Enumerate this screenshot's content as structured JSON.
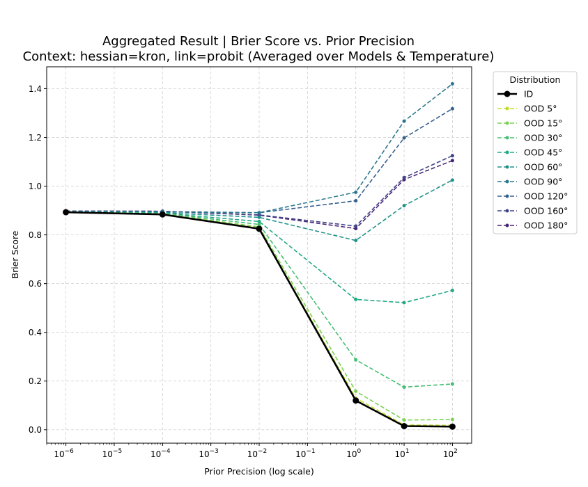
{
  "chart_data": {
    "type": "line",
    "title": "Aggregated Result | Brier Score vs. Prior Precision",
    "subtitle": "Context: hessian=kron, link=probit (Averaged over Models & Temperature)",
    "xlabel": "Prior Precision (log scale)",
    "ylabel": "Brier Score",
    "x_scale": "log",
    "x": [
      1e-06,
      0.0001,
      0.01,
      1,
      10,
      100
    ],
    "xlim": [
      4e-07,
      250
    ],
    "ylim": [
      -0.055,
      1.49
    ],
    "x_ticks": [
      {
        "exp": 6,
        "value": 1e-06
      },
      {
        "exp": 5,
        "value": 1e-05
      },
      {
        "exp": 4,
        "value": 0.0001
      },
      {
        "exp": 3,
        "value": 0.001
      },
      {
        "exp": 2,
        "value": 0.01
      },
      {
        "exp": 1,
        "value": 0.1
      },
      {
        "exp": 0,
        "value": 1
      },
      {
        "exp": 1,
        "value": 10
      },
      {
        "exp": 2,
        "value": 100
      }
    ],
    "x_tick_labels": [
      "10",
      "10",
      "10",
      "10",
      "10",
      "10",
      "10",
      "10",
      "10"
    ],
    "x_tick_exponents": [
      "−6",
      "−5",
      "−4",
      "−3",
      "−2",
      "−1",
      "0",
      "1",
      "2"
    ],
    "y_ticks": [
      0.0,
      0.2,
      0.4,
      0.6,
      0.8,
      1.0,
      1.2,
      1.4
    ],
    "y_tick_labels": [
      "0.0",
      "0.2",
      "0.4",
      "0.6",
      "0.8",
      "1.0",
      "1.2",
      "1.4"
    ],
    "grid": true,
    "legend": {
      "title": "Distribution",
      "placement": "outside-right-top"
    },
    "series": [
      {
        "name": "ID",
        "color": "#000000",
        "style": "solid",
        "values": [
          0.893,
          0.884,
          0.825,
          0.12,
          0.015,
          0.013
        ]
      },
      {
        "name": "OOD 5°",
        "color": "#bddf26",
        "style": "dashed",
        "values": [
          0.893,
          0.885,
          0.828,
          0.13,
          0.02,
          0.018
        ]
      },
      {
        "name": "OOD 15°",
        "color": "#7ad151",
        "style": "dashed",
        "values": [
          0.893,
          0.886,
          0.833,
          0.158,
          0.04,
          0.042
        ]
      },
      {
        "name": "OOD 30°",
        "color": "#44bf70",
        "style": "dashed",
        "values": [
          0.894,
          0.888,
          0.843,
          0.287,
          0.175,
          0.188
        ]
      },
      {
        "name": "OOD 45°",
        "color": "#22a884",
        "style": "dashed",
        "values": [
          0.894,
          0.889,
          0.855,
          0.535,
          0.522,
          0.572
        ]
      },
      {
        "name": "OOD 60°",
        "color": "#21918c",
        "style": "dashed",
        "values": [
          0.895,
          0.891,
          0.872,
          0.777,
          0.92,
          1.025
        ]
      },
      {
        "name": "OOD 90°",
        "color": "#2a788e",
        "style": "dashed",
        "values": [
          0.896,
          0.894,
          0.891,
          0.975,
          1.267,
          1.42
        ]
      },
      {
        "name": "OOD 120°",
        "color": "#355f8d",
        "style": "dashed",
        "values": [
          0.897,
          0.896,
          0.891,
          0.94,
          1.198,
          1.318
        ]
      },
      {
        "name": "OOD 160°",
        "color": "#414487",
        "style": "dashed",
        "values": [
          0.898,
          0.897,
          0.882,
          0.836,
          1.035,
          1.125
        ]
      },
      {
        "name": "OOD 180°",
        "color": "#482475",
        "style": "dashed",
        "values": [
          0.898,
          0.897,
          0.881,
          0.826,
          1.027,
          1.105
        ]
      }
    ]
  }
}
